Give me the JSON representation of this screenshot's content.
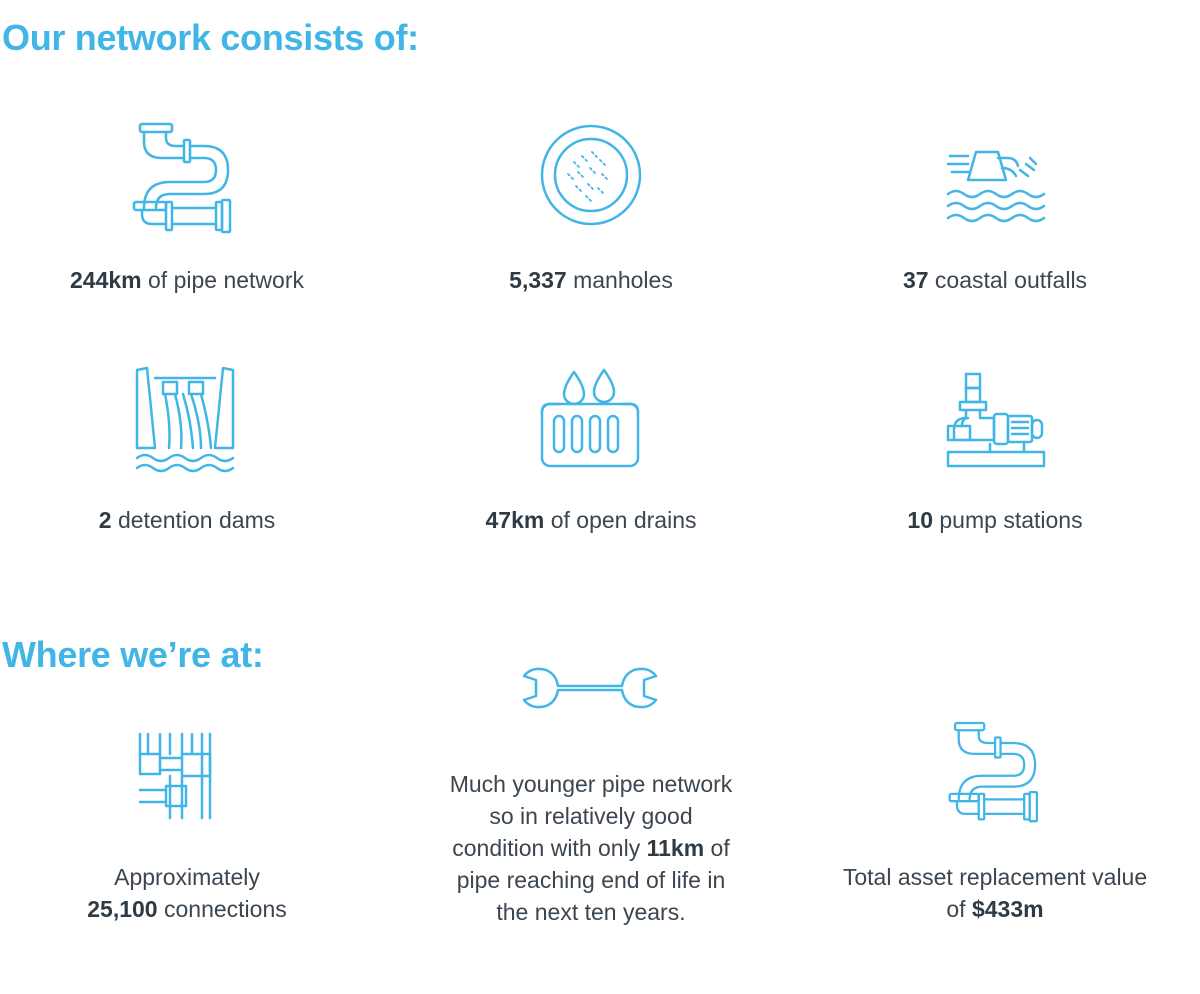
{
  "network": {
    "heading": "Our network consists of:",
    "items": [
      {
        "value": "244km",
        "label": "of pipe network",
        "icon": "pipe-icon"
      },
      {
        "value": "5,337",
        "label": "manholes",
        "icon": "manhole-icon"
      },
      {
        "value": "37",
        "label": "coastal outfalls",
        "icon": "coastal-outfall-icon"
      },
      {
        "value": "2",
        "label": "detention dams",
        "icon": "detention-dam-icon"
      },
      {
        "value": "47km",
        "label": "of open drains",
        "icon": "open-drain-icon"
      },
      {
        "value": "10",
        "label": "pump stations",
        "icon": "pump-station-icon"
      }
    ]
  },
  "status": {
    "heading": "Where we’re at:",
    "connections": {
      "line1": "Approximately",
      "value": "25,100",
      "label": "connections",
      "icon": "pipe-connections-icon"
    },
    "condition": {
      "line1": "Much younger pipe network",
      "line2": "so in relatively good",
      "line3_pre": "condition with only",
      "value": "11km",
      "line3_post": "of",
      "line4": "pipe reaching end of life in",
      "line5": "the next ten years.",
      "icon": "wrench-icon"
    },
    "replacement": {
      "line1": "Total asset replacement value",
      "pre": "of",
      "value": "$433m",
      "icon": "pipe-icon"
    }
  },
  "colors": {
    "accent": "#41b6e6",
    "text": "#3b4650",
    "bold": "#2e3a44"
  }
}
